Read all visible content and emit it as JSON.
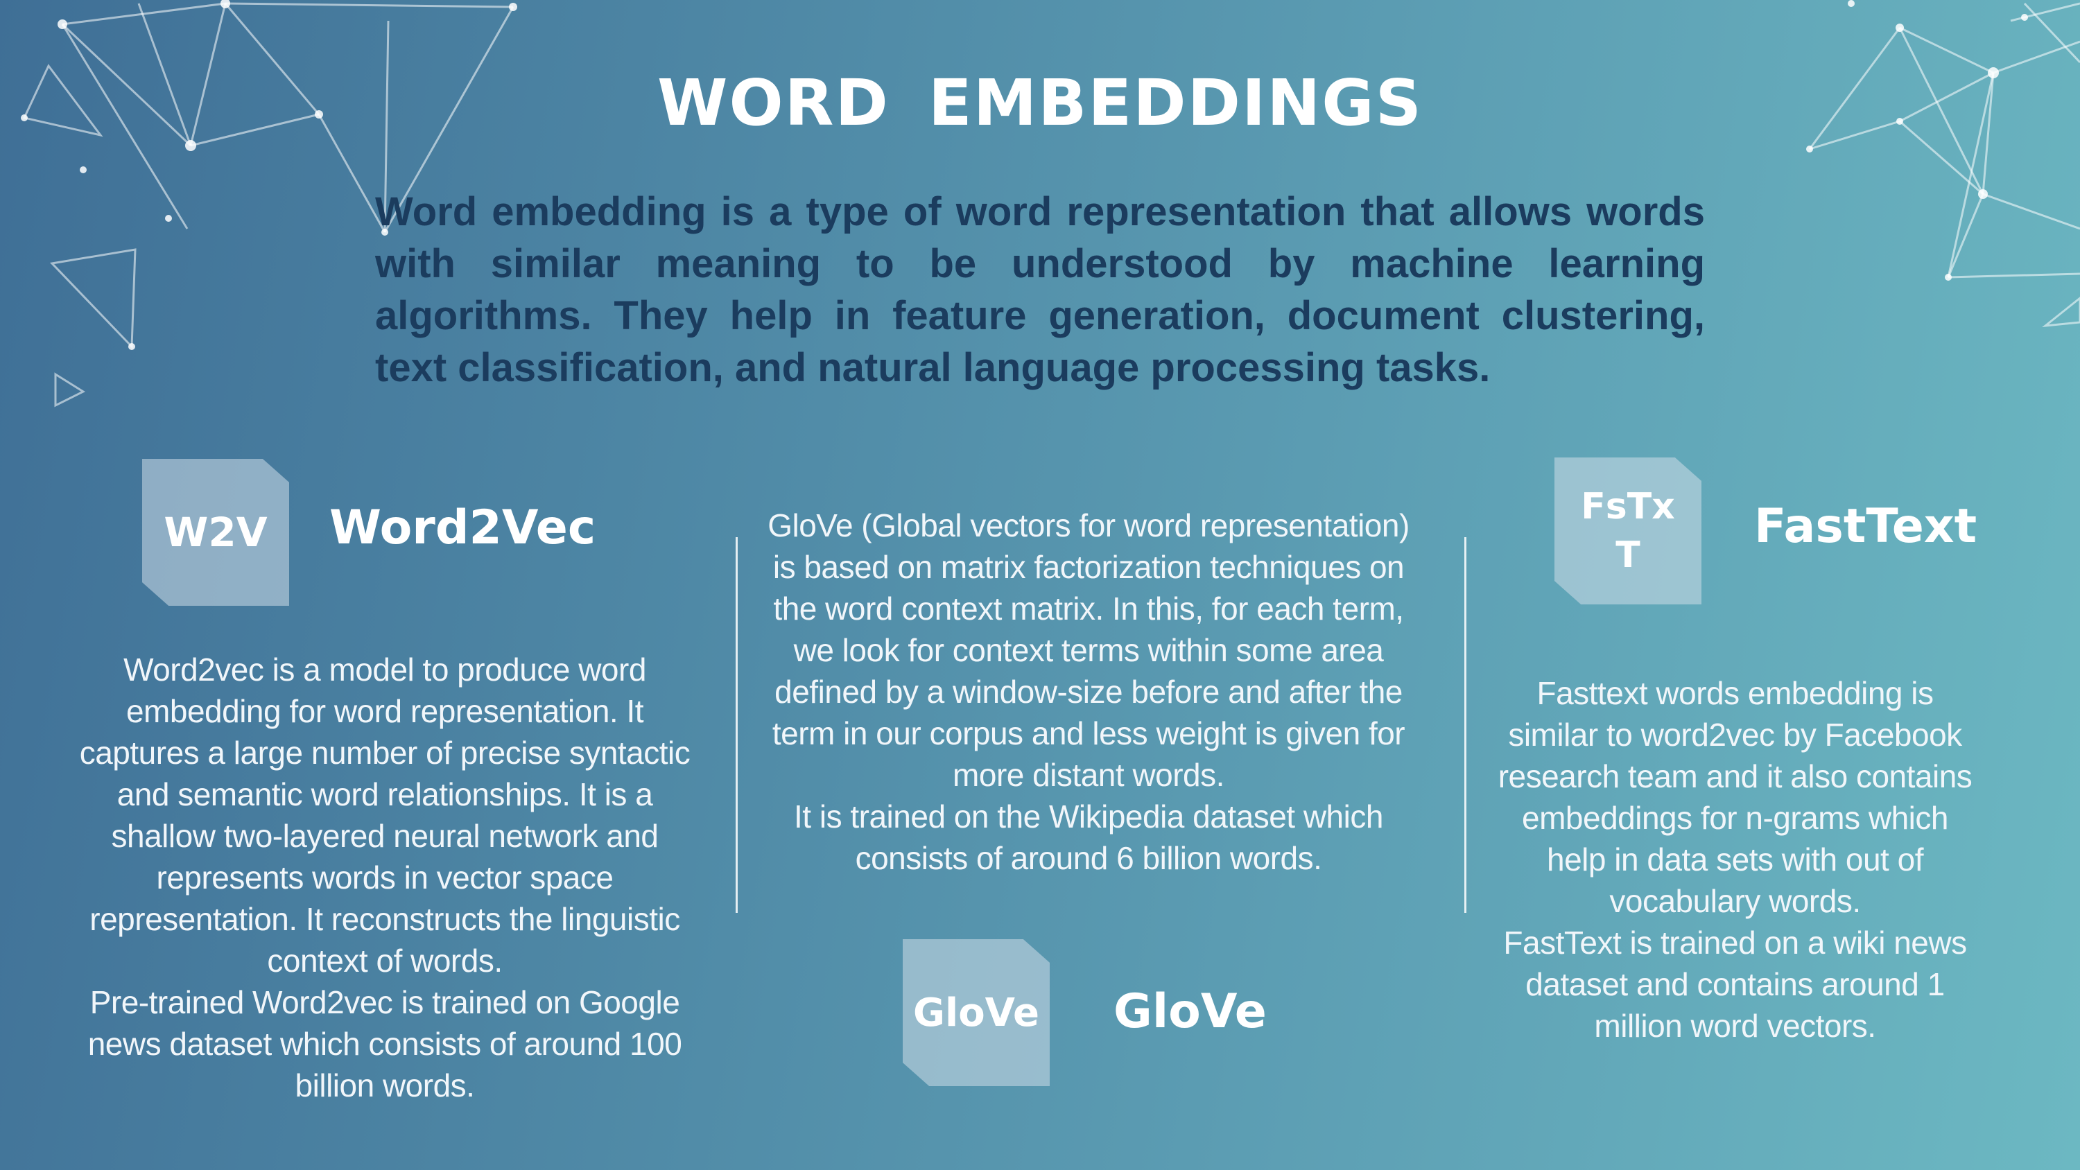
{
  "title": "WORD  EMBEDDINGS",
  "intro": "Word embedding is a type of word representation that allows words with similar meaning to be understood by machine learning algorithms. They help in feature generation, document clustering, text classification, and natural language processing tasks.",
  "word2vec": {
    "tile_label": "W2V",
    "heading": "Word2Vec",
    "body": "Word2vec is a  model to produce word embedding for word representation. It captures a large number of precise syntactic and semantic word relationships. It is a shallow two-layered neural network and represents words in vector space representation. It reconstructs the linguistic context of words.",
    "body2": "Pre-trained Word2vec is trained on Google news dataset which consists of around 100 billion words."
  },
  "glove": {
    "tile_label": "GloVe",
    "heading": "GloVe",
    "body": "GloVe (Global vectors for word representation) is based on matrix factorization techniques on the word context matrix. In this, for each term, we look for context terms within some area defined by a window-size before and after the term in our corpus and less weight is given for more distant words.",
    "body2": "It is trained on the Wikipedia dataset which consists of around 6 billion words."
  },
  "fasttext": {
    "tile_label_line1": "FsTx",
    "tile_label_line2": "T",
    "heading": "FastText",
    "body": "Fasttext words embedding is similar to word2vec by Facebook research team and it also contains embeddings for n-grams which help in data sets with out of vocabulary words.",
    "body2": "FastText is trained on a wiki news dataset and contains around 1 million word vectors."
  }
}
